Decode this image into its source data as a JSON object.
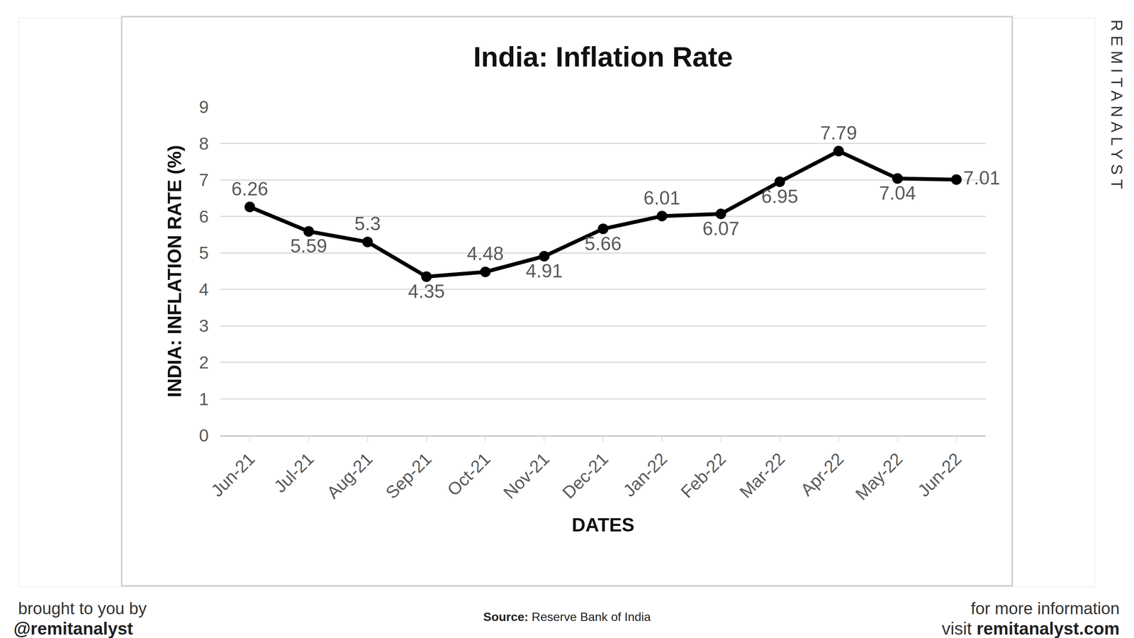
{
  "chart_data": {
    "type": "line",
    "title": "India: Inflation Rate",
    "x_label": "DATES",
    "y_label": "INDIA: INFLATION RATE (%)",
    "categories": [
      "Jun-21",
      "Jul-21",
      "Aug-21",
      "Sep-21",
      "Oct-21",
      "Nov-21",
      "Dec-21",
      "Jan-22",
      "Feb-22",
      "Mar-22",
      "Apr-22",
      "May-22",
      "Jun-22"
    ],
    "values": [
      6.26,
      5.59,
      5.3,
      4.35,
      4.48,
      4.91,
      5.66,
      6.01,
      6.07,
      6.95,
      7.79,
      7.04,
      7.01
    ],
    "color": "#000000",
    "marker": "circle",
    "line_style": "solid",
    "ylim": [
      0,
      9
    ],
    "yticks": [
      0,
      1,
      2,
      3,
      4,
      5,
      6,
      7,
      8,
      9
    ],
    "grid": true,
    "data_labels": true,
    "source": {
      "label": "Source:",
      "text": "Reserve Bank of India"
    }
  },
  "branding": {
    "watermark": "REMITANALYST",
    "left": [
      "brought to you by",
      "@remitanalyst"
    ],
    "right": {
      "line1": "for more information",
      "prefix": "visit",
      "link": "remitanalyst.com"
    }
  }
}
